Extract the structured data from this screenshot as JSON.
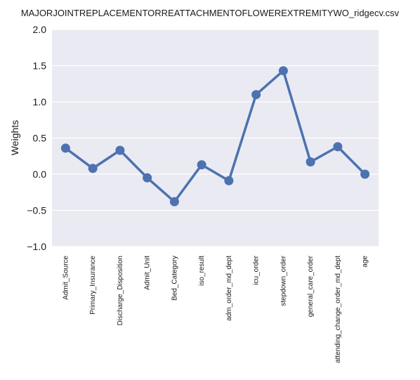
{
  "chart_data": {
    "type": "line",
    "title": "MAJORJOINTREPLACEMENTORREATTACHMENTOFLOWEREXTREMITYWO_ridgecv.csv",
    "xlabel": "",
    "ylabel": "Weights",
    "ylim": [
      -1.0,
      2.0
    ],
    "yticks": [
      "2.0",
      "1.5",
      "1.0",
      "0.5",
      "0.0",
      "−0.5",
      "−1.0"
    ],
    "grid": true,
    "categories": [
      "Admit_Source",
      "Primary_Insurance",
      "Discharge_Disposition",
      "Admit_Unit",
      "Bed_Category",
      "iso_result",
      "adm_order_md_dept",
      "icu_order",
      "stepdown_order",
      "general_care_order",
      "attending_change_order_md_dept",
      "age"
    ],
    "series": [
      {
        "values": [
          0.36,
          0.08,
          0.33,
          -0.05,
          -0.38,
          0.13,
          -0.09,
          1.1,
          1.43,
          0.17,
          0.38,
          0.0
        ]
      }
    ],
    "colors": {
      "line": "#4c72b0",
      "background": "#eaeaf2",
      "grid": "#ffffff"
    }
  }
}
